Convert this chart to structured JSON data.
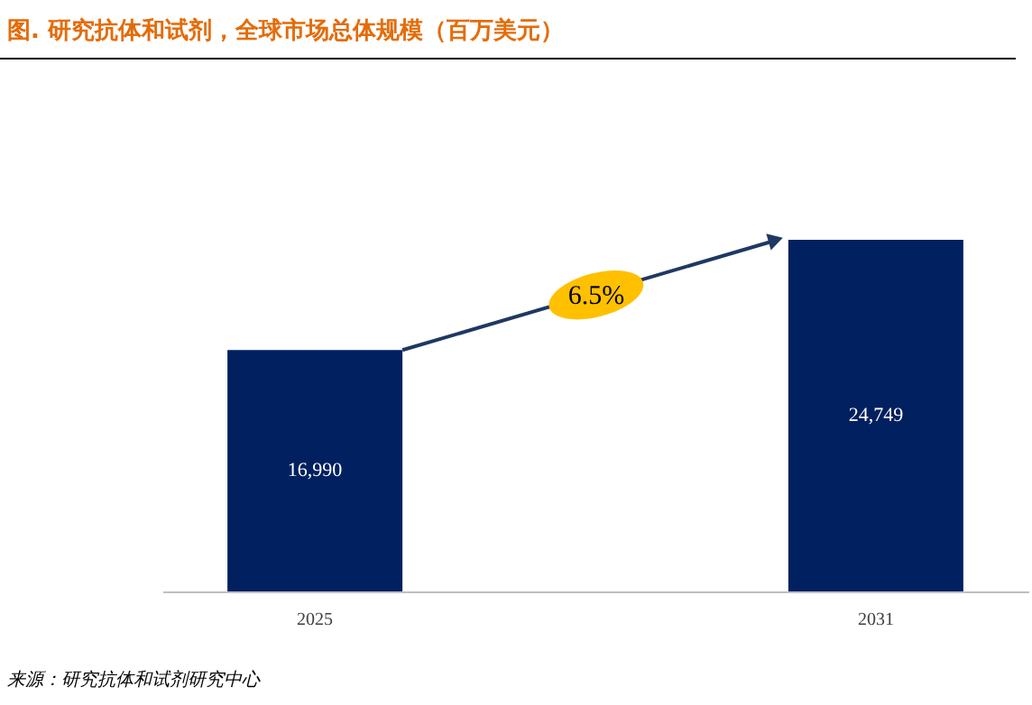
{
  "chart_data": {
    "type": "bar",
    "title": "图. 研究抗体和试剂，全球市场总体规模（百万美元）",
    "categories": [
      "2025",
      "2031"
    ],
    "values": [
      16990,
      24749
    ],
    "color": "#002060",
    "value_labels": [
      "16,990",
      "24,749"
    ],
    "tick_labels": "x",
    "annotations": [
      "6.5%",
      "来源：研究抗体和试剂研究中心"
    ]
  }
}
